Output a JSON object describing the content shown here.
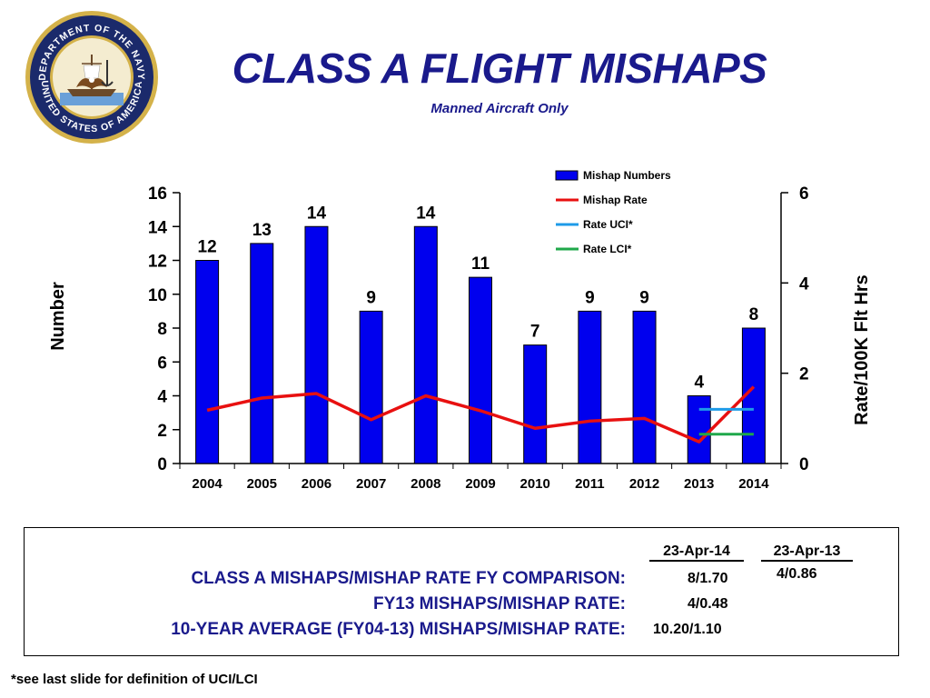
{
  "header": {
    "title": "CLASS A FLIGHT MISHAPS",
    "subtitle": "Manned Aircraft Only"
  },
  "seal": {
    "text": "DEPARTMENT OF THE NAVY • UNITED STATES OF AMERICA"
  },
  "chart_data": {
    "type": "bar",
    "categories": [
      "2004",
      "2005",
      "2006",
      "2007",
      "2008",
      "2009",
      "2010",
      "2011",
      "2012",
      "2013",
      "2014"
    ],
    "ylabel": "Number",
    "y2label": "Rate/100K Flt Hrs",
    "ylim": [
      0,
      16
    ],
    "y2lim": [
      0,
      6
    ],
    "yticks": [
      0,
      2,
      4,
      6,
      8,
      10,
      12,
      14,
      16
    ],
    "y2ticks": [
      0,
      2,
      4,
      6
    ],
    "series": [
      {
        "name": "Mishap Numbers",
        "kind": "bar",
        "axis": "left",
        "color": "#0000ee",
        "values": [
          12,
          13,
          14,
          9,
          14,
          11,
          7,
          9,
          9,
          4,
          8
        ]
      },
      {
        "name": "Mishap Rate",
        "kind": "line",
        "axis": "right",
        "color": "#e81010",
        "values": [
          1.18,
          1.45,
          1.55,
          0.97,
          1.5,
          1.17,
          0.78,
          0.94,
          1.0,
          0.48,
          1.7
        ]
      },
      {
        "name": "Rate UCI*",
        "kind": "segment",
        "axis": "right",
        "color": "#1e9be8",
        "x_from": "2013",
        "x_to": "2014",
        "value": 1.2
      },
      {
        "name": "Rate LCI*",
        "kind": "segment",
        "axis": "right",
        "color": "#1fa84a",
        "x_from": "2013",
        "x_to": "2014",
        "value": 0.65
      }
    ],
    "legend_position": "top-right",
    "grid": false
  },
  "comparison": {
    "col1_header": "23-Apr-14",
    "col2_header": "23-Apr-13",
    "rows": [
      {
        "label": "CLASS A MISHAPS/MISHAP RATE FY COMPARISON:",
        "value": "8/1.70",
        "prior": "4/0.86"
      },
      {
        "label": "FY13 MISHAPS/MISHAP RATE:",
        "value": "4/0.48",
        "prior": ""
      },
      {
        "label": "10-YEAR AVERAGE (FY04-13) MISHAPS/MISHAP RATE:",
        "value": "10.20/1.10",
        "prior": ""
      }
    ]
  },
  "footnote": "*see last slide for definition of UCI/LCI",
  "colors": {
    "title": "#1a1a8c",
    "bar": "#0000ee",
    "rate_line": "#e81010",
    "uci": "#1e9be8",
    "lci": "#1fa84a",
    "seal_blue": "#1b2a6b",
    "seal_gold": "#d4b24a"
  }
}
